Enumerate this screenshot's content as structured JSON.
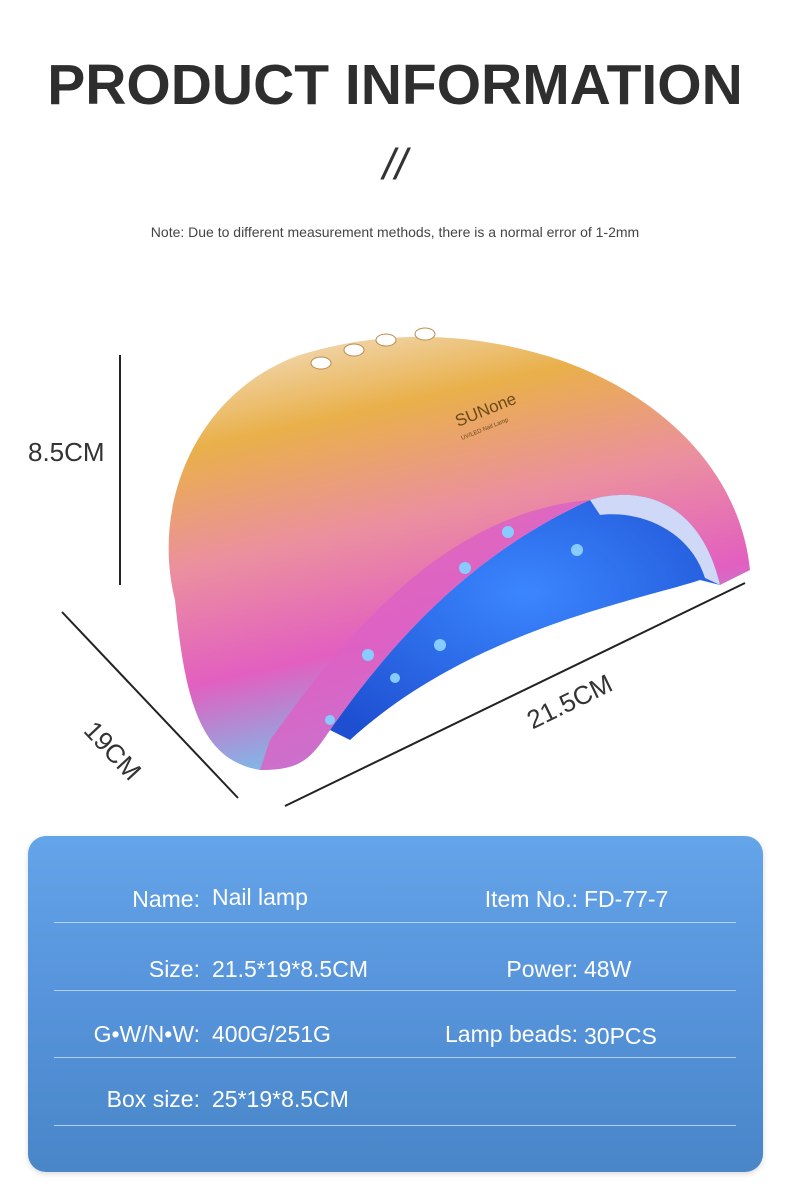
{
  "header": {
    "title": "PRODUCT INFORMATION",
    "divider": "//",
    "note": "Note: Due to different measurement methods, there is a normal error of 1-2mm"
  },
  "dimensions": {
    "height": "8.5CM",
    "depth": "19CM",
    "width": "21.5CM"
  },
  "product_image": {
    "brand": "SUNone",
    "subtitle": "UV/LED Nail Lamp",
    "colors": {
      "gold": "#e8a83a",
      "pink": "#e86ab8",
      "blue_led": "#2f6ff0",
      "cyan": "#6fd0f0"
    }
  },
  "specs": {
    "rows": [
      {
        "left_label": "Name:",
        "left_value": "Nail lamp",
        "right_label": "Item No.:",
        "right_value": "FD-77-7"
      },
      {
        "left_label": "Size:",
        "left_value": "21.5*19*8.5CM",
        "right_label": "Power:",
        "right_value": "48W"
      },
      {
        "left_label": "G•W/N•W:",
        "left_value": "400G/251G",
        "right_label": "Lamp beads:",
        "right_value": "30PCS"
      },
      {
        "left_label": "Box size:",
        "left_value": "25*19*8.5CM",
        "right_label": "",
        "right_value": ""
      }
    ],
    "panel_color": "#5693da"
  }
}
